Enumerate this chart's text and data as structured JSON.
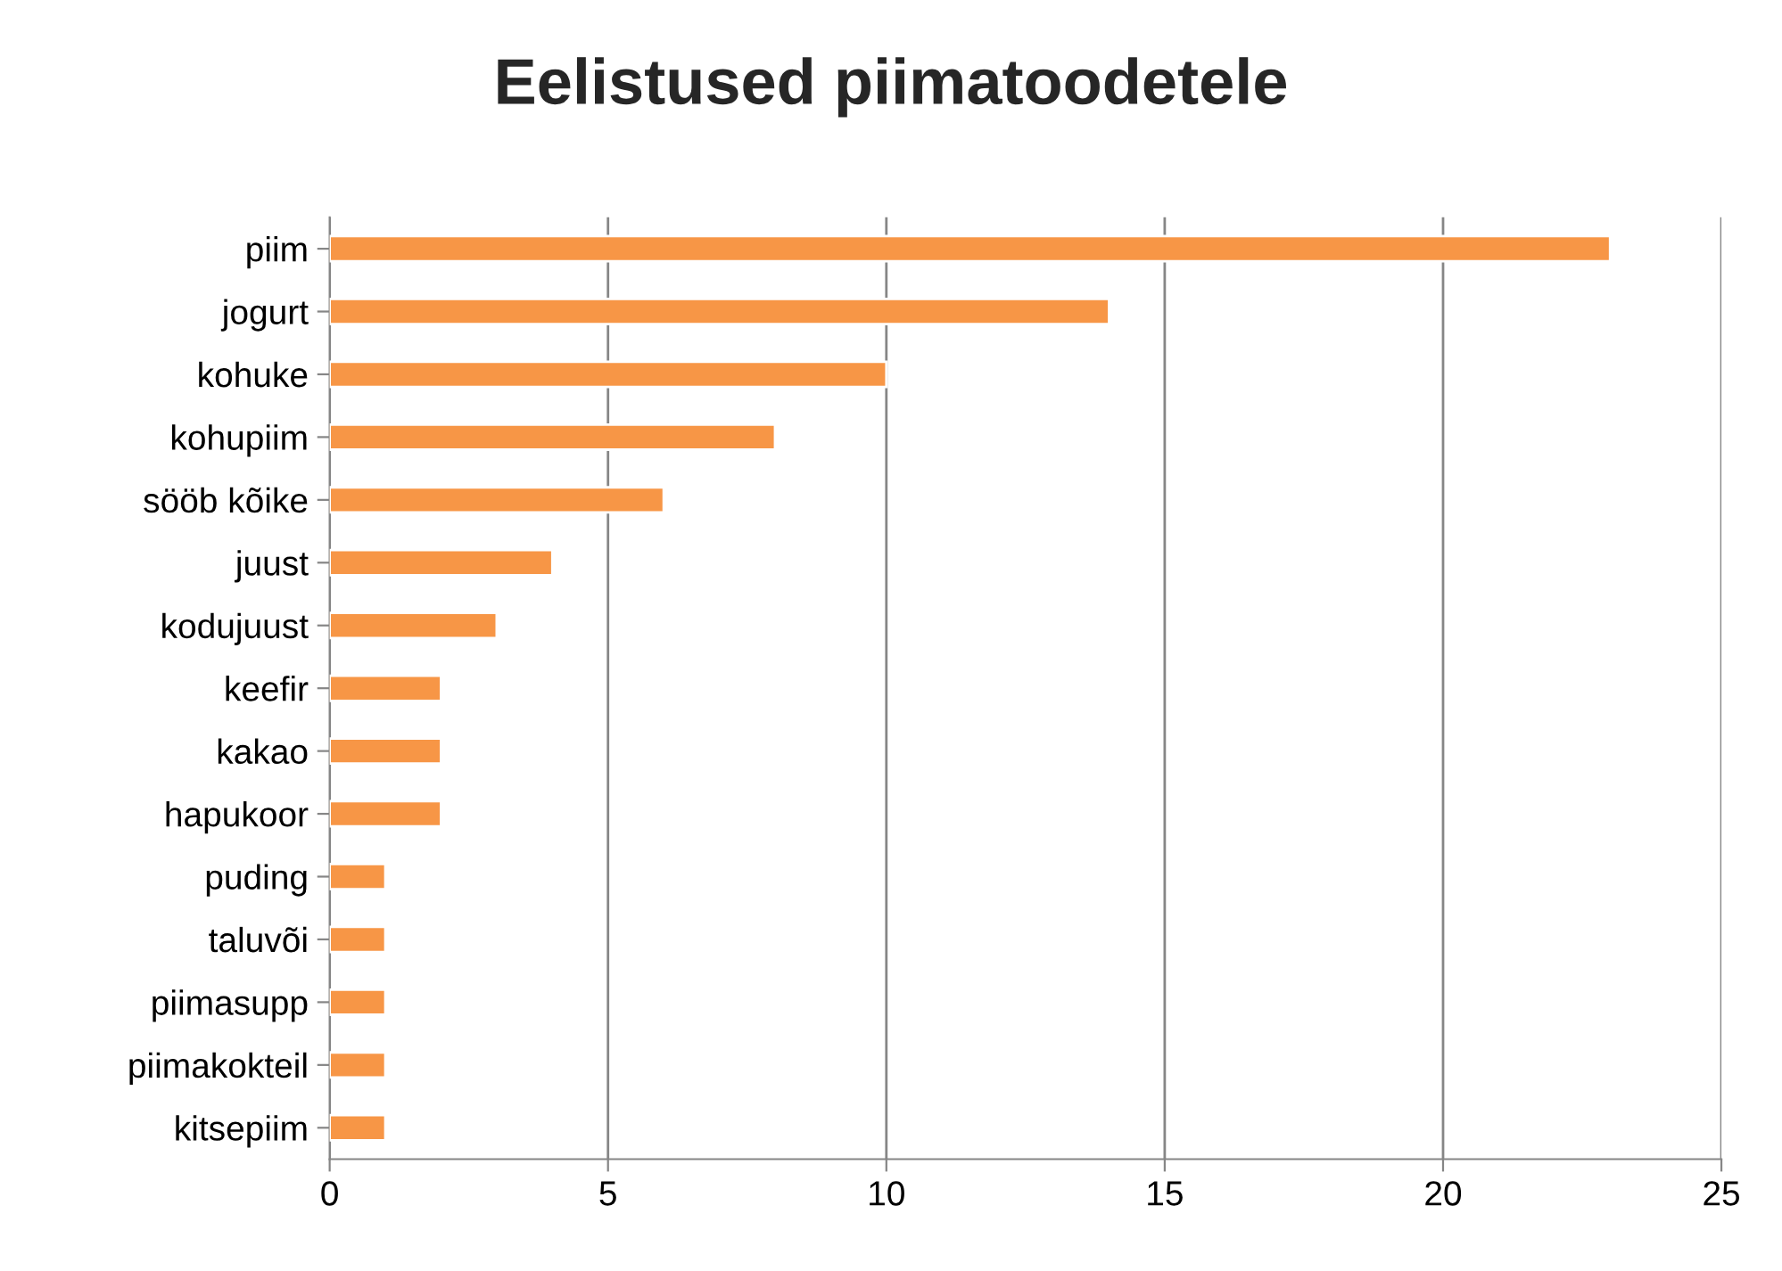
{
  "chart_data": {
    "type": "bar",
    "orientation": "horizontal",
    "title": "Eelistused piimatoodetele",
    "categories": [
      "piim",
      "jogurt",
      "kohuke",
      "kohupiim",
      "sööb kõike",
      "juust",
      "kodujuust",
      "keefir",
      "kakao",
      "hapukoor",
      "puding",
      "taluvõi",
      "piimasupp",
      "piimakokteil",
      "kitsepiim"
    ],
    "values": [
      23,
      14,
      10,
      8,
      6,
      4,
      3,
      2,
      2,
      2,
      1,
      1,
      1,
      1,
      1
    ],
    "color": "#f79646",
    "xlim": [
      0,
      25
    ],
    "xticks": [
      0,
      5,
      10,
      15,
      20,
      25
    ],
    "grid": "x",
    "legend": false
  }
}
